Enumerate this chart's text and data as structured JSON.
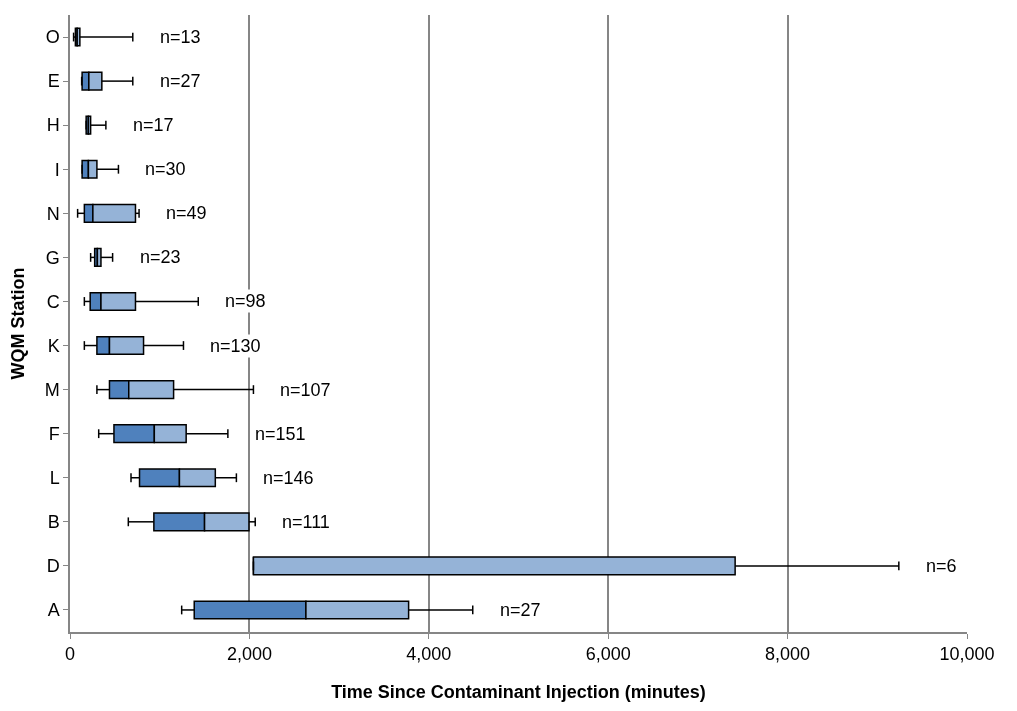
{
  "chart_data": {
    "type": "box",
    "orientation": "horizontal",
    "xlabel": "Time Since Contaminant Injection (minutes)",
    "ylabel": "WQM Station",
    "categories": [
      "O",
      "E",
      "H",
      "I",
      "N",
      "G",
      "C",
      "K",
      "M",
      "F",
      "L",
      "B",
      "D",
      "A"
    ],
    "boxes": [
      {
        "low": 40,
        "q1": 60,
        "median": 80,
        "q3": 110,
        "high": 700
      },
      {
        "low": 130,
        "q1": 135,
        "median": 210,
        "q3": 355,
        "high": 700
      },
      {
        "low": 180,
        "q1": 180,
        "median": 205,
        "q3": 230,
        "high": 400
      },
      {
        "low": 135,
        "q1": 135,
        "median": 205,
        "q3": 300,
        "high": 540
      },
      {
        "low": 85,
        "q1": 160,
        "median": 255,
        "q3": 730,
        "high": 770
      },
      {
        "low": 230,
        "q1": 275,
        "median": 305,
        "q3": 345,
        "high": 475
      },
      {
        "low": 160,
        "q1": 225,
        "median": 345,
        "q3": 730,
        "high": 1430
      },
      {
        "low": 160,
        "q1": 300,
        "median": 440,
        "q3": 820,
        "high": 1265
      },
      {
        "low": 300,
        "q1": 440,
        "median": 655,
        "q3": 1155,
        "high": 2045
      },
      {
        "low": 320,
        "q1": 490,
        "median": 940,
        "q3": 1295,
        "high": 1760
      },
      {
        "low": 680,
        "q1": 775,
        "median": 1220,
        "q3": 1620,
        "high": 1855
      },
      {
        "low": 650,
        "q1": 935,
        "median": 1500,
        "q3": 1995,
        "high": 2065
      },
      {
        "low": 2045,
        "q1": 2045,
        "median": 2045,
        "q3": 7415,
        "high": 9240
      },
      {
        "low": 1245,
        "q1": 1385,
        "median": 2630,
        "q3": 3775,
        "high": 4490
      }
    ],
    "colors": [
      "#4f81bd",
      "#4f81bd",
      "#4f81bd",
      "#4f81bd",
      "#4f81bd",
      "#4f81bd",
      "#4f81bd",
      "#4f81bd",
      "#4f81bd",
      "#4f81bd",
      "#4f81bd",
      "#4f81bd",
      "#95b3d7",
      "#4f81bd"
    ],
    "color": "#95b3d7",
    "xlim": [
      0,
      10000
    ],
    "xticks": [
      {
        "value": 0,
        "label": "0"
      },
      {
        "value": 2000,
        "label": "2,000"
      },
      {
        "value": 4000,
        "label": "4,000"
      },
      {
        "value": 6000,
        "label": "6,000"
      },
      {
        "value": 8000,
        "label": "8,000"
      },
      {
        "value": 10000,
        "label": "10,000"
      }
    ],
    "grid": "x",
    "annotations": [
      "n=13",
      "n=27",
      "n=17",
      "n=30",
      "n=49",
      "n=23",
      "n=98",
      "n=130",
      "n=107",
      "n=151",
      "n=146",
      "n=111",
      "n=6",
      "n=27"
    ]
  }
}
